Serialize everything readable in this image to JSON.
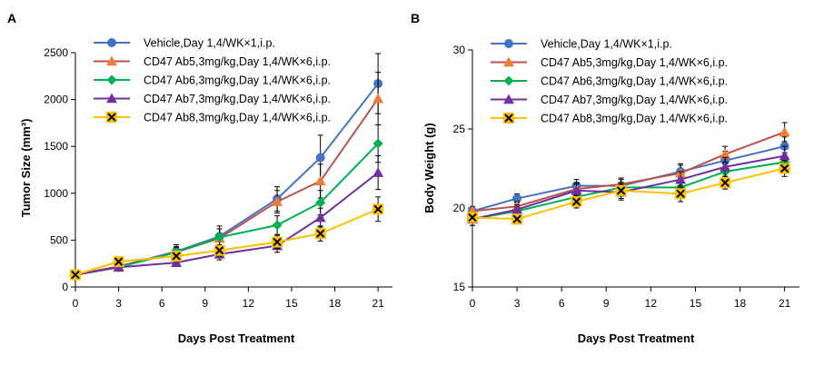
{
  "chart_data": [
    {
      "panel_label": "A",
      "type": "line",
      "xlabel": "Days Post Treatment",
      "ylabel": "Tumor Size (mm³)",
      "xlim": [
        0,
        22
      ],
      "ylim": [
        0,
        2500
      ],
      "xticks": [
        0,
        3,
        6,
        9,
        12,
        15,
        18,
        21
      ],
      "yticks": [
        0,
        500,
        1000,
        1500,
        2000,
        2500
      ],
      "grid": false,
      "legend_position": "top-left",
      "x": [
        0,
        3,
        7,
        10,
        14,
        17,
        21
      ],
      "series": [
        {
          "name": "Vehicle,Day 1,4/WK×1,i.p.",
          "color": "#4472C4",
          "marker": "circle",
          "values": [
            130,
            220,
            380,
            540,
            940,
            1380,
            2170
          ],
          "errors": [
            25,
            30,
            70,
            110,
            130,
            240,
            320
          ]
        },
        {
          "name": "CD47 Ab5,3mg/kg,Day 1,4/WK×6,i.p.",
          "color": "#C0504D",
          "marker": "triangle-up",
          "marker_color": "#ED7D31",
          "values": [
            130,
            220,
            370,
            520,
            910,
            1130,
            2010
          ],
          "errors": [
            20,
            30,
            60,
            100,
            120,
            180,
            280
          ]
        },
        {
          "name": "CD47 Ab6,3mg/kg,Day 1,4/WK×6,i.p.",
          "color": "#00B050",
          "marker": "diamond",
          "values": [
            130,
            210,
            370,
            530,
            660,
            900,
            1530
          ],
          "errors": [
            20,
            25,
            50,
            90,
            100,
            130,
            200
          ]
        },
        {
          "name": "CD47 Ab7,3mg/kg,Day 1,4/WK×6,i.p.",
          "color": "#7030A0",
          "marker": "triangle-up",
          "values": [
            130,
            210,
            260,
            350,
            440,
            740,
            1220
          ],
          "errors": [
            20,
            25,
            40,
            60,
            70,
            100,
            180
          ]
        },
        {
          "name": "CD47 Ab8,3mg/kg,Day 1,4/WK×6,i.p.",
          "color": "#FFC000",
          "marker": "x-box",
          "values": [
            130,
            270,
            330,
            390,
            480,
            570,
            830
          ],
          "errors": [
            20,
            30,
            40,
            60,
            70,
            80,
            130
          ]
        }
      ]
    },
    {
      "panel_label": "B",
      "type": "line",
      "xlabel": "Days Post Treatment",
      "ylabel": "Body Weight (g)",
      "xlim": [
        0,
        22
      ],
      "ylim": [
        15,
        30
      ],
      "xticks": [
        0,
        3,
        6,
        9,
        12,
        15,
        18,
        21
      ],
      "yticks": [
        15,
        20,
        25,
        30
      ],
      "grid": false,
      "legend_position": "top-left",
      "x": [
        0,
        3,
        7,
        10,
        14,
        17,
        21
      ],
      "series": [
        {
          "name": "Vehicle,Day 1,4/WK×1,i.p.",
          "color": "#4472C4",
          "marker": "circle",
          "values": [
            19.8,
            20.6,
            21.4,
            21.4,
            22.3,
            23.0,
            23.9
          ],
          "errors": [
            0.2,
            0.3,
            0.4,
            0.5,
            0.5,
            0.6,
            0.6
          ]
        },
        {
          "name": "CD47 Ab5,3mg/kg,Day 1,4/WK×6,i.p.",
          "color": "#C0504D",
          "marker": "triangle-up",
          "marker_color": "#ED7D31",
          "values": [
            19.8,
            20.1,
            21.2,
            21.5,
            22.2,
            23.4,
            24.8
          ],
          "errors": [
            0.3,
            0.3,
            0.4,
            0.4,
            0.5,
            0.5,
            0.6
          ]
        },
        {
          "name": "CD47 Ab6,3mg/kg,Day 1,4/WK×6,i.p.",
          "color": "#00B050",
          "marker": "diamond",
          "values": [
            19.3,
            19.8,
            20.7,
            21.3,
            21.3,
            22.3,
            22.9
          ],
          "errors": [
            0.4,
            0.3,
            0.5,
            0.5,
            0.6,
            0.5,
            0.6
          ]
        },
        {
          "name": "CD47 Ab7,3mg/kg,Day 1,4/WK×6,i.p.",
          "color": "#7030A0",
          "marker": "triangle-up",
          "values": [
            19.3,
            19.9,
            21.1,
            21.0,
            21.8,
            22.6,
            23.3
          ],
          "errors": [
            0.4,
            0.3,
            0.4,
            0.5,
            0.5,
            0.6,
            0.6
          ]
        },
        {
          "name": "CD47 Ab8,3mg/kg,Day 1,4/WK×6,i.p.",
          "color": "#FFC000",
          "marker": "x-box",
          "values": [
            19.4,
            19.3,
            20.4,
            21.1,
            20.9,
            21.6,
            22.5
          ],
          "errors": [
            0.3,
            0.3,
            0.4,
            0.5,
            0.5,
            0.4,
            0.5
          ]
        }
      ]
    }
  ]
}
